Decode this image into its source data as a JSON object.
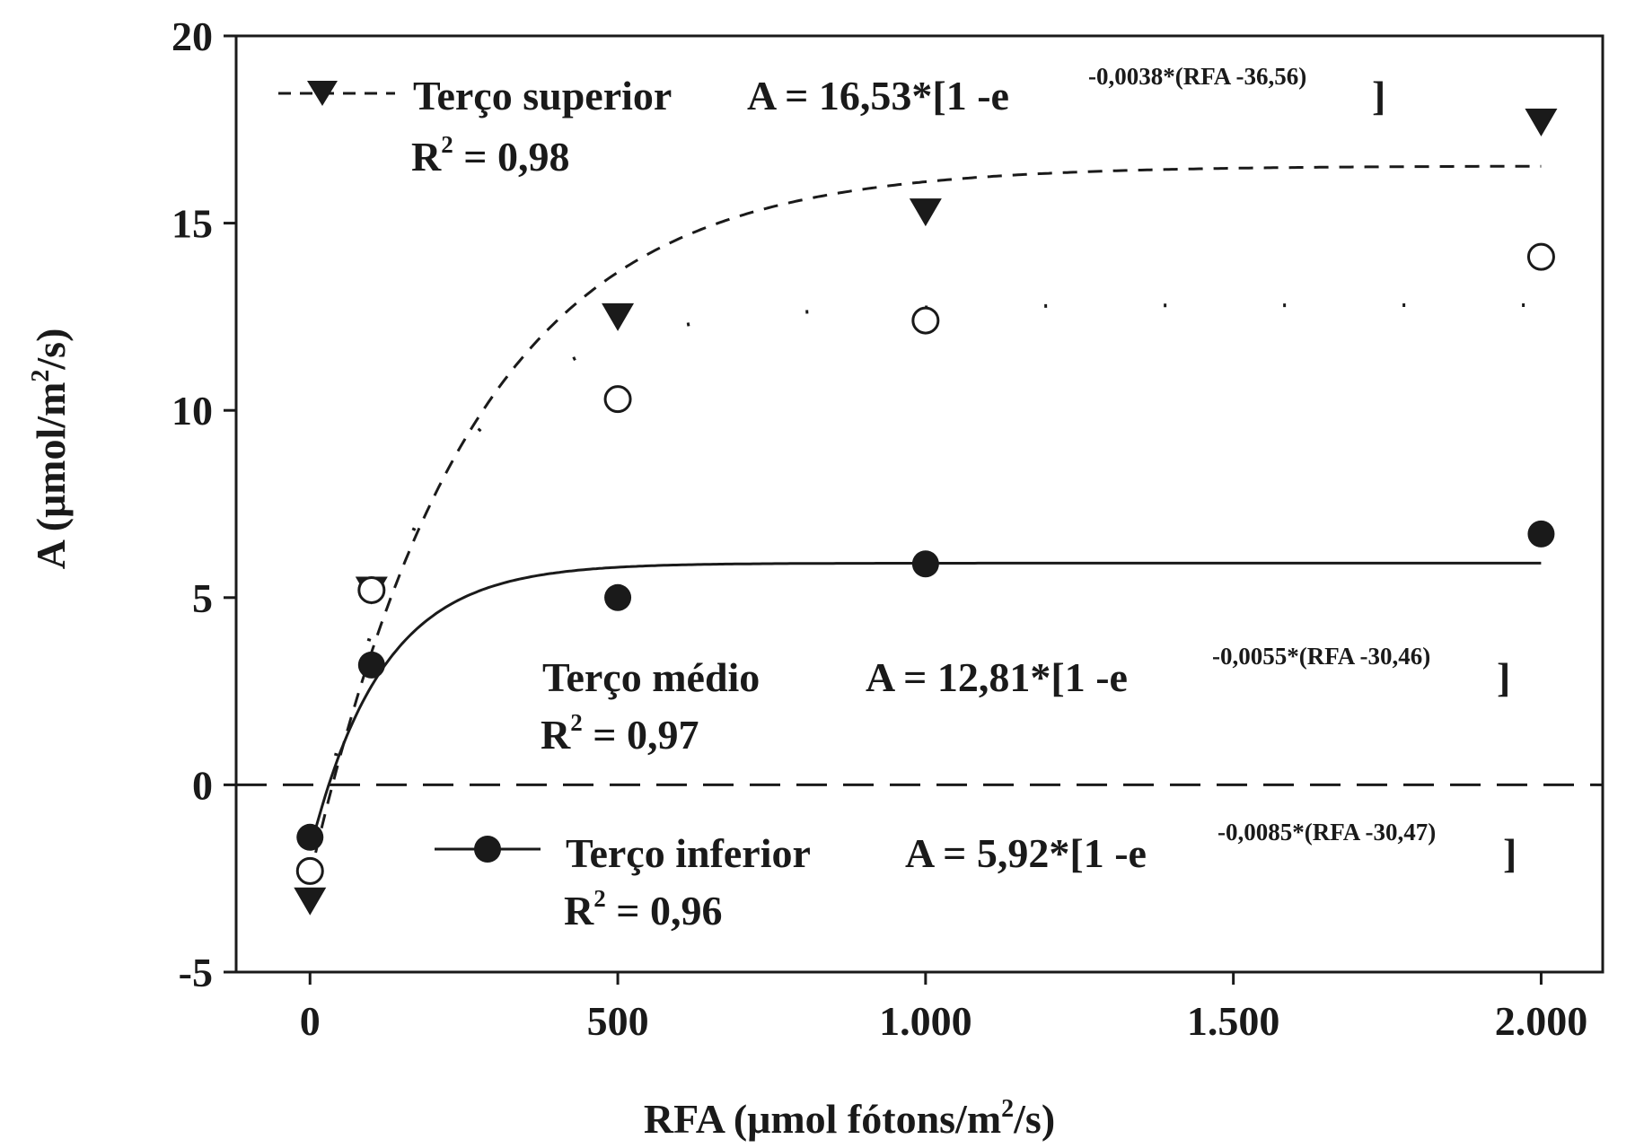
{
  "chart_data": {
    "type": "scatter",
    "xlabel": {
      "main": "RFA (",
      "mu": "μ",
      "rest": "mol fótons/m",
      "sup": "2",
      "end": "/s)"
    },
    "ylabel": {
      "main": "A (",
      "mu": "μ",
      "rest": "mol/m",
      "sup": "2",
      "end": "/s)"
    },
    "xlim": [
      -120,
      2100
    ],
    "ylim": [
      -5,
      20
    ],
    "xticks": [
      {
        "value": 0,
        "label": "0"
      },
      {
        "value": 500,
        "label": "500"
      },
      {
        "value": 1000,
        "label": "1.000"
      },
      {
        "value": 1500,
        "label": "1.500"
      },
      {
        "value": 2000,
        "label": "2.000"
      }
    ],
    "yticks": [
      {
        "value": -5,
        "label": "-5"
      },
      {
        "value": 0,
        "label": "0"
      },
      {
        "value": 5,
        "label": "5"
      },
      {
        "value": 10,
        "label": "10"
      },
      {
        "value": 15,
        "label": "15"
      },
      {
        "value": 20,
        "label": "20"
      }
    ],
    "zero_line": true,
    "series": [
      {
        "name": "Terço superior",
        "marker": "triangle-down-filled",
        "line": "dashed",
        "x": [
          0,
          100,
          500,
          1000,
          2000
        ],
        "y": [
          -3.1,
          5.2,
          12.5,
          15.3,
          17.7
        ],
        "fit": {
          "a": 16.53,
          "k": 0.0038,
          "x0": 36.56
        },
        "equation": "A = 16,53*[1 -e",
        "exponent": "-0,0038*(RFA -36,56)",
        "close": "]",
        "r2_label": "R",
        "r2_sup": "2",
        "r2_value": " = 0,98"
      },
      {
        "name": "Terço médio",
        "marker": "circle-open",
        "line": "dotted",
        "x": [
          0,
          100,
          500,
          1000,
          2000
        ],
        "y": [
          -2.3,
          5.2,
          10.3,
          12.4,
          14.1
        ],
        "fit": {
          "a": 12.81,
          "k": 0.0055,
          "x0": 30.46
        },
        "equation": "A = 12,81*[1 -e",
        "exponent": "-0,0055*(RFA -30,46)",
        "close": "]",
        "r2_label": "R",
        "r2_sup": "2",
        "r2_value": " = 0,97"
      },
      {
        "name": "Terço inferior",
        "marker": "circle-filled",
        "line": "solid",
        "x": [
          0,
          100,
          500,
          1000,
          2000
        ],
        "y": [
          -1.4,
          3.2,
          5.0,
          5.9,
          6.7
        ],
        "fit": {
          "a": 5.92,
          "k": 0.0085,
          "x0": 30.47
        },
        "equation": "A = 5,92*[1 -e",
        "exponent": "-0,0085*(RFA -30,47)",
        "close": "]",
        "r2_label": "R",
        "r2_sup": "2",
        "r2_value": " = 0,96"
      }
    ],
    "colors": {
      "ink": "#1a1a1a",
      "background": "#ffffff"
    }
  }
}
